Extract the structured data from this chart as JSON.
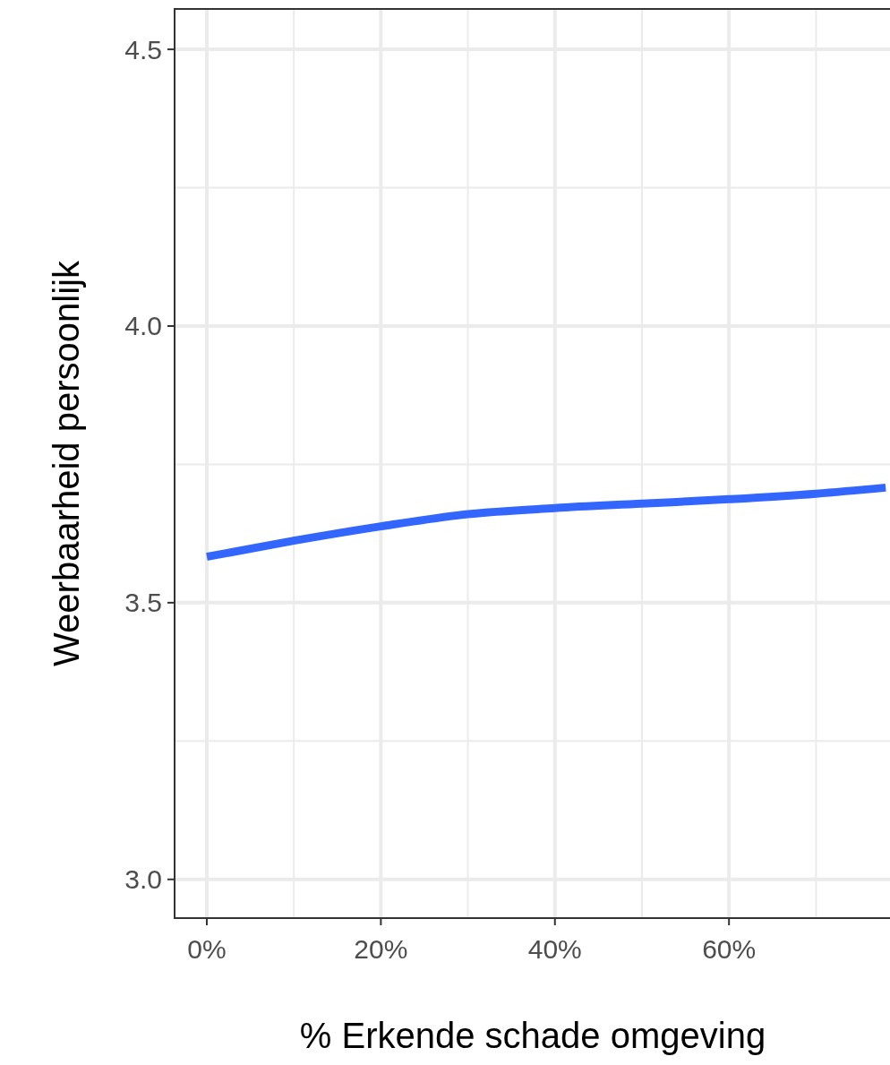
{
  "chart_data": {
    "type": "line",
    "xlabel": "% Erkende schade omgeving",
    "ylabel": "Weerbaarheid persoonlijk",
    "x": [
      0,
      0.1,
      0.2,
      0.3,
      0.4,
      0.5,
      0.6,
      0.7,
      0.78
    ],
    "series": [
      {
        "color": "#3366ff",
        "values": [
          3.583,
          3.612,
          3.638,
          3.66,
          3.671,
          3.679,
          3.687,
          3.697,
          3.708
        ]
      }
    ],
    "xlim": [
      -0.037,
      0.785
    ],
    "ylim": [
      2.93,
      4.573
    ],
    "xticks": [
      {
        "value": 0,
        "label": "0%"
      },
      {
        "value": 0.1,
        "label": null
      },
      {
        "value": 0.2,
        "label": "20%"
      },
      {
        "value": 0.3,
        "label": null
      },
      {
        "value": 0.4,
        "label": "40%"
      },
      {
        "value": 0.5,
        "label": null
      },
      {
        "value": 0.6,
        "label": "60%"
      },
      {
        "value": 0.7,
        "label": null
      }
    ],
    "yticks": [
      {
        "value": 3.0,
        "label": "3.0"
      },
      {
        "value": 3.25,
        "label": null
      },
      {
        "value": 3.5,
        "label": "3.5"
      },
      {
        "value": 3.75,
        "label": null
      },
      {
        "value": 4.0,
        "label": "4.0"
      },
      {
        "value": 4.25,
        "label": null
      },
      {
        "value": 4.5,
        "label": "4.5"
      }
    ],
    "grid": true,
    "marker": "none",
    "line_style": "solid"
  }
}
